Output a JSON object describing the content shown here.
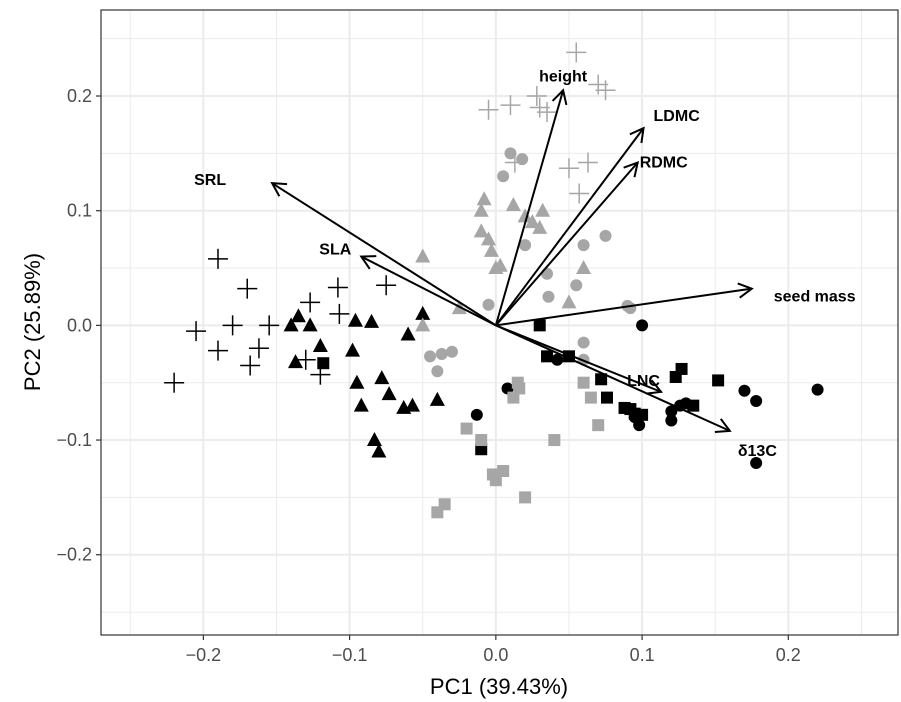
{
  "chart_data": {
    "type": "scatter",
    "title": "",
    "xlabel": "PC1 (39.43%)",
    "ylabel": "PC2 (25.89%)",
    "xlim": [
      -0.27,
      0.275
    ],
    "ylim": [
      -0.27,
      0.275
    ],
    "x_ticks": [
      -0.2,
      -0.1,
      0.0,
      0.1,
      0.2
    ],
    "x_tick_labels": [
      "−0.2",
      "−0.1",
      "0.0",
      "0.1",
      "0.2"
    ],
    "y_ticks": [
      -0.2,
      -0.1,
      0.0,
      0.1,
      0.2
    ],
    "y_tick_labels": [
      "−0.2",
      "−0.1",
      "0.0",
      "0.1",
      "0.2"
    ],
    "grid": true,
    "colors": {
      "black": "#000000",
      "grey": "#a6a6a6",
      "gridline": "#ebebeb",
      "panel_border": "#333333"
    },
    "series": [
      {
        "shape": "plus",
        "color": "black",
        "points": [
          [
            -0.22,
            -0.05
          ],
          [
            -0.205,
            -0.005
          ],
          [
            -0.19,
            0.058
          ],
          [
            -0.19,
            -0.022
          ],
          [
            -0.18,
            0.0
          ],
          [
            -0.17,
            0.032
          ],
          [
            -0.168,
            -0.035
          ],
          [
            -0.162,
            -0.02
          ],
          [
            -0.155,
            0.0
          ],
          [
            -0.13,
            -0.03
          ],
          [
            -0.127,
            0.02
          ],
          [
            -0.12,
            -0.043
          ],
          [
            -0.108,
            0.033
          ],
          [
            -0.107,
            0.01
          ],
          [
            -0.075,
            0.035
          ]
        ]
      },
      {
        "shape": "plus",
        "color": "grey",
        "points": [
          [
            -0.005,
            0.188
          ],
          [
            0.01,
            0.192
          ],
          [
            0.013,
            0.142
          ],
          [
            0.028,
            0.2
          ],
          [
            0.03,
            0.19
          ],
          [
            0.035,
            0.186
          ],
          [
            0.05,
            0.137
          ],
          [
            0.055,
            0.238
          ],
          [
            0.057,
            0.115
          ],
          [
            0.063,
            0.142
          ],
          [
            0.07,
            0.21
          ],
          [
            0.075,
            0.205
          ]
        ]
      },
      {
        "shape": "triangle",
        "color": "black",
        "points": [
          [
            -0.14,
            0.0
          ],
          [
            -0.137,
            -0.032
          ],
          [
            -0.135,
            0.008
          ],
          [
            -0.127,
            0.0
          ],
          [
            -0.12,
            -0.018
          ],
          [
            -0.098,
            -0.022
          ],
          [
            -0.096,
            0.004
          ],
          [
            -0.095,
            -0.05
          ],
          [
            -0.092,
            -0.07
          ],
          [
            -0.085,
            0.003
          ],
          [
            -0.083,
            -0.1
          ],
          [
            -0.08,
            -0.11
          ],
          [
            -0.078,
            -0.046
          ],
          [
            -0.073,
            -0.06
          ],
          [
            -0.063,
            -0.072
          ],
          [
            -0.06,
            -0.008
          ],
          [
            -0.057,
            -0.07
          ],
          [
            -0.05,
            0.01
          ],
          [
            -0.04,
            -0.065
          ]
        ]
      },
      {
        "shape": "triangle",
        "color": "grey",
        "points": [
          [
            -0.05,
            0.06
          ],
          [
            -0.05,
            0.0
          ],
          [
            -0.025,
            0.015
          ],
          [
            -0.01,
            0.082
          ],
          [
            -0.01,
            0.1
          ],
          [
            -0.008,
            0.11
          ],
          [
            -0.005,
            0.075
          ],
          [
            -0.003,
            0.065
          ],
          [
            0.0,
            0.05
          ],
          [
            0.003,
            0.052
          ],
          [
            0.012,
            0.105
          ],
          [
            0.02,
            0.095
          ],
          [
            0.025,
            0.09
          ],
          [
            0.03,
            0.085
          ],
          [
            0.032,
            0.1
          ],
          [
            0.05,
            0.02
          ],
          [
            0.06,
            0.05
          ]
        ]
      },
      {
        "shape": "circle",
        "color": "black",
        "points": [
          [
            -0.013,
            -0.078
          ],
          [
            0.008,
            -0.055
          ],
          [
            0.042,
            -0.03
          ],
          [
            0.095,
            -0.08
          ],
          [
            0.098,
            -0.087
          ],
          [
            0.1,
            0.0
          ],
          [
            0.12,
            -0.075
          ],
          [
            0.12,
            -0.083
          ],
          [
            0.126,
            -0.07
          ],
          [
            0.13,
            -0.068
          ],
          [
            0.17,
            -0.057
          ],
          [
            0.178,
            -0.066
          ],
          [
            0.178,
            -0.12
          ],
          [
            0.22,
            -0.056
          ]
        ]
      },
      {
        "shape": "circle",
        "color": "grey",
        "points": [
          [
            -0.045,
            -0.027
          ],
          [
            -0.04,
            -0.04
          ],
          [
            -0.037,
            -0.025
          ],
          [
            -0.03,
            -0.023
          ],
          [
            -0.005,
            0.018
          ],
          [
            0.005,
            0.13
          ],
          [
            0.01,
            0.15
          ],
          [
            0.018,
            0.145
          ],
          [
            0.02,
            0.07
          ],
          [
            0.035,
            0.045
          ],
          [
            0.036,
            0.025
          ],
          [
            0.055,
            0.035
          ],
          [
            0.06,
            0.07
          ],
          [
            0.075,
            0.078
          ],
          [
            0.09,
            0.017
          ],
          [
            0.092,
            0.015
          ],
          [
            0.06,
            -0.015
          ],
          [
            0.06,
            -0.03
          ]
        ]
      },
      {
        "shape": "square",
        "color": "black",
        "points": [
          [
            -0.118,
            -0.033
          ],
          [
            -0.01,
            -0.108
          ],
          [
            0.03,
            0.0
          ],
          [
            0.035,
            -0.027
          ],
          [
            0.05,
            -0.027
          ],
          [
            0.072,
            -0.047
          ],
          [
            0.076,
            -0.063
          ],
          [
            0.088,
            -0.072
          ],
          [
            0.092,
            -0.073
          ],
          [
            0.095,
            -0.077
          ],
          [
            0.1,
            -0.078
          ],
          [
            0.123,
            -0.045
          ],
          [
            0.127,
            -0.038
          ],
          [
            0.135,
            -0.07
          ],
          [
            0.152,
            -0.048
          ]
        ]
      },
      {
        "shape": "square",
        "color": "grey",
        "points": [
          [
            -0.04,
            -0.163
          ],
          [
            -0.035,
            -0.156
          ],
          [
            -0.02,
            -0.09
          ],
          [
            -0.01,
            -0.1
          ],
          [
            -0.002,
            -0.13
          ],
          [
            0.0,
            -0.135
          ],
          [
            0.005,
            -0.127
          ],
          [
            0.012,
            -0.063
          ],
          [
            0.015,
            -0.05
          ],
          [
            0.016,
            -0.055
          ],
          [
            0.02,
            -0.15
          ],
          [
            0.04,
            -0.1
          ],
          [
            0.06,
            -0.05
          ],
          [
            0.065,
            -0.063
          ],
          [
            0.07,
            -0.087
          ]
        ]
      }
    ],
    "loadings": [
      {
        "label": "height",
        "x": 0.046,
        "y": 0.205
      },
      {
        "label": "LDMC",
        "x": 0.101,
        "y": 0.172
      },
      {
        "label": "RDMC",
        "x": 0.097,
        "y": 0.142
      },
      {
        "label": "SRL",
        "x": -0.153,
        "y": 0.124
      },
      {
        "label": "SLA",
        "x": -0.092,
        "y": 0.06
      },
      {
        "label": "seed mass",
        "x": 0.175,
        "y": 0.032
      },
      {
        "label": "LNC",
        "x": 0.113,
        "y": -0.058
      },
      {
        "label": "δ13C",
        "x": 0.16,
        "y": -0.092
      }
    ]
  }
}
